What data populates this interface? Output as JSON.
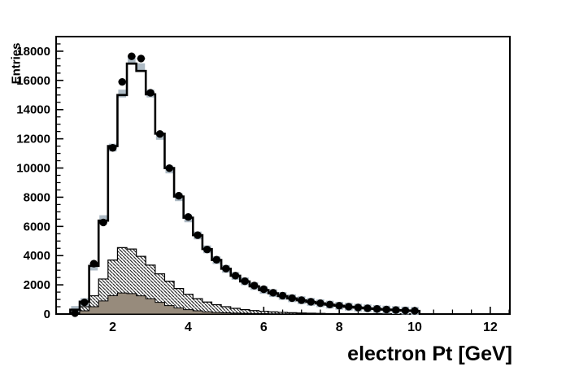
{
  "x_axis": {
    "title": "electron Pt [GeV]",
    "tick_values": [
      2,
      4,
      6,
      8,
      10,
      12
    ],
    "tick_labels": [
      "2",
      "4",
      "6",
      "8",
      "10",
      "12"
    ],
    "minor_tick_step": 0.5,
    "range": [
      0.5,
      12.52
    ]
  },
  "y_axis": {
    "title": "Entries",
    "tick_values": [
      0,
      2000,
      4000,
      6000,
      8000,
      10000,
      12000,
      14000,
      16000,
      18000
    ],
    "tick_labels": [
      "0",
      "2000",
      "4000",
      "6000",
      "8000",
      "10000",
      "12000",
      "14000",
      "16000",
      "18000"
    ],
    "minor_tick_step": 500,
    "range": [
      0,
      19000
    ]
  },
  "colors": {
    "frame": "#000000",
    "mc_line": "#000000",
    "data_marker": "#000000",
    "square_marker": "#aebbc5",
    "solid_fill": "#978b7c",
    "hatch_line": "#000000",
    "background": "#ffffff"
  },
  "chart_data": {
    "type": "bar",
    "subtype": "overlaid-histograms-with-data-points",
    "title": "",
    "xlabel": "electron Pt [GeV]",
    "ylabel": "Entries",
    "xlim": [
      0.5,
      12.52
    ],
    "ylim": [
      0,
      19000
    ],
    "grid": false,
    "legend": "none",
    "bin_width": 0.25,
    "x_bin_centers": [
      1.0,
      1.25,
      1.5,
      1.75,
      2.0,
      2.25,
      2.5,
      2.75,
      3.0,
      3.25,
      3.5,
      3.75,
      4.0,
      4.25,
      4.5,
      4.75,
      5.0,
      5.25,
      5.5,
      5.75,
      6.0,
      6.25,
      6.5,
      6.75,
      7.0,
      7.25,
      7.5,
      7.75,
      8.0,
      8.25,
      8.5,
      8.75,
      9.0,
      9.25,
      9.5,
      9.75,
      10.0
    ],
    "series": [
      {
        "name": "data_points",
        "style": "black-filled-circles-with-error-bars",
        "values": [
          60,
          800,
          3450,
          6270,
          11380,
          15900,
          17650,
          17500,
          15150,
          12330,
          9990,
          8100,
          6650,
          5400,
          4420,
          3720,
          3110,
          2630,
          2250,
          1950,
          1700,
          1460,
          1260,
          1090,
          950,
          840,
          740,
          650,
          570,
          505,
          445,
          392,
          348,
          308,
          272,
          242,
          218
        ]
      },
      {
        "name": "mc_total",
        "style": "black-step-line",
        "values": [
          300,
          850,
          3300,
          6400,
          11500,
          15000,
          17150,
          16650,
          15050,
          12350,
          10000,
          8050,
          6600,
          5400,
          4450,
          3700,
          3100,
          2620,
          2230,
          1900,
          1640,
          1420,
          1230,
          1070,
          940,
          830,
          730,
          640,
          565,
          500,
          440,
          390,
          345,
          305,
          270,
          240,
          215
        ]
      },
      {
        "name": "mc_reference",
        "style": "gray-blue-square-markers",
        "color": "#aebbc5",
        "values": [
          280,
          820,
          3250,
          6500,
          11400,
          15100,
          17400,
          16900,
          15100,
          12200,
          9900,
          8000,
          6550,
          5380,
          4430,
          3690,
          3090,
          2610,
          2240,
          1915,
          1650,
          1430,
          1240,
          1080,
          945,
          835,
          735,
          645,
          568,
          502,
          442,
          391,
          346,
          306,
          271,
          241,
          216
        ]
      },
      {
        "name": "background_hatched",
        "style": "diagonal-hatched-step-fill",
        "values": [
          120,
          500,
          1250,
          2400,
          3700,
          4550,
          4450,
          3950,
          3350,
          2750,
          2250,
          1750,
          1350,
          1050,
          820,
          640,
          500,
          390,
          300,
          235,
          185,
          145,
          115,
          90,
          70,
          55,
          42,
          32,
          25,
          18,
          13,
          9,
          6,
          4,
          3,
          2,
          1
        ]
      },
      {
        "name": "background_component",
        "style": "solid-taupe-step-fill",
        "color": "#978b7c",
        "values": [
          50,
          220,
          500,
          900,
          1260,
          1440,
          1400,
          1250,
          1050,
          800,
          580,
          420,
          300,
          220,
          150,
          110,
          85,
          65,
          50,
          35,
          25,
          15,
          10,
          6,
          4,
          2,
          1,
          0,
          0,
          0,
          0,
          0,
          0,
          0,
          0,
          0,
          0
        ]
      }
    ]
  }
}
